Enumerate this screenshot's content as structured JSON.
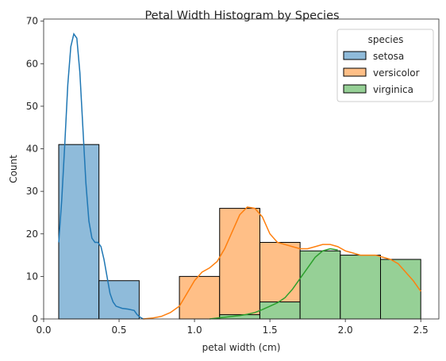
{
  "chart_data": {
    "type": "bar",
    "title": "Petal Width Histogram by Species",
    "xlabel": "petal width (cm)",
    "ylabel": "Count",
    "xlim": [
      0.0,
      2.62
    ],
    "ylim": [
      0,
      70.5
    ],
    "x_ticks": [
      0.0,
      0.5,
      1.0,
      1.5,
      2.0,
      2.5
    ],
    "x_tick_labels": [
      "0.0",
      "0.5",
      "1.0",
      "1.5",
      "2.0",
      "2.5"
    ],
    "y_ticks": [
      0,
      10,
      20,
      30,
      40,
      50,
      60,
      70
    ],
    "y_tick_labels": [
      "0",
      "10",
      "20",
      "30",
      "40",
      "50",
      "60",
      "70"
    ],
    "bin_edges": [
      0.1,
      0.3667,
      0.6333,
      0.9,
      1.1667,
      1.4333,
      1.7,
      1.9667,
      2.2333,
      2.5
    ],
    "legend": {
      "title": "species",
      "position": "top-right"
    },
    "series": [
      {
        "name": "setosa",
        "color": "#1f77b4",
        "counts": [
          41,
          9,
          0,
          0,
          0,
          0,
          0,
          0,
          0
        ],
        "kde": [
          [
            0.1,
            18
          ],
          [
            0.12,
            28
          ],
          [
            0.14,
            41
          ],
          [
            0.16,
            55
          ],
          [
            0.18,
            64
          ],
          [
            0.2,
            67
          ],
          [
            0.22,
            66
          ],
          [
            0.24,
            58
          ],
          [
            0.26,
            45
          ],
          [
            0.28,
            32
          ],
          [
            0.3,
            23
          ],
          [
            0.32,
            19
          ],
          [
            0.34,
            18
          ],
          [
            0.36,
            18
          ],
          [
            0.38,
            17
          ],
          [
            0.4,
            14
          ],
          [
            0.42,
            10
          ],
          [
            0.44,
            6
          ],
          [
            0.46,
            4
          ],
          [
            0.48,
            3
          ],
          [
            0.52,
            2.5
          ],
          [
            0.56,
            2.3
          ],
          [
            0.6,
            2
          ],
          [
            0.62,
            1
          ],
          [
            0.64,
            0.4
          ],
          [
            0.66,
            0
          ]
        ]
      },
      {
        "name": "versicolor",
        "color": "#ff7f0e",
        "counts": [
          0,
          0,
          0,
          10,
          26,
          18,
          0,
          0,
          0
        ],
        "kde": [
          [
            0.66,
            0
          ],
          [
            0.72,
            0.2
          ],
          [
            0.78,
            0.6
          ],
          [
            0.84,
            1.5
          ],
          [
            0.9,
            3
          ],
          [
            0.95,
            6
          ],
          [
            1.0,
            9
          ],
          [
            1.05,
            11
          ],
          [
            1.1,
            12
          ],
          [
            1.15,
            13.5
          ],
          [
            1.2,
            16.5
          ],
          [
            1.25,
            20.5
          ],
          [
            1.3,
            24.5
          ],
          [
            1.35,
            26.3
          ],
          [
            1.4,
            26
          ],
          [
            1.45,
            24
          ],
          [
            1.5,
            20
          ],
          [
            1.55,
            18
          ],
          [
            1.6,
            17.5
          ],
          [
            1.65,
            17
          ],
          [
            1.7,
            16.5
          ],
          [
            1.75,
            16.5
          ],
          [
            1.8,
            17
          ],
          [
            1.85,
            17.5
          ],
          [
            1.9,
            17.5
          ],
          [
            1.95,
            17
          ],
          [
            2.0,
            16
          ],
          [
            2.05,
            15.5
          ],
          [
            2.1,
            15
          ],
          [
            2.15,
            15
          ],
          [
            2.2,
            15
          ],
          [
            2.25,
            14.5
          ],
          [
            2.3,
            14
          ],
          [
            2.35,
            13
          ],
          [
            2.4,
            11
          ],
          [
            2.45,
            9
          ],
          [
            2.5,
            6.5
          ]
        ]
      },
      {
        "name": "virginica",
        "color": "#2ca02c",
        "counts": [
          0,
          0,
          0,
          0,
          1,
          4,
          16,
          15,
          14
        ],
        "kde": [
          [
            1.1,
            0
          ],
          [
            1.15,
            0.2
          ],
          [
            1.2,
            0.4
          ],
          [
            1.25,
            0.6
          ],
          [
            1.3,
            0.8
          ],
          [
            1.35,
            1.1
          ],
          [
            1.4,
            1.5
          ],
          [
            1.45,
            2.2
          ],
          [
            1.5,
            3
          ],
          [
            1.55,
            3.8
          ],
          [
            1.6,
            5
          ],
          [
            1.65,
            7
          ],
          [
            1.7,
            9.5
          ],
          [
            1.75,
            12
          ],
          [
            1.8,
            14.5
          ],
          [
            1.85,
            16
          ],
          [
            1.9,
            16.5
          ],
          [
            1.95,
            16.2
          ]
        ]
      }
    ],
    "grid": false
  }
}
